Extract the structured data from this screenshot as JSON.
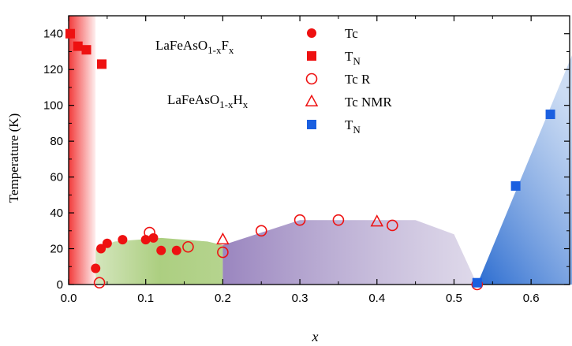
{
  "chart_data": {
    "type": "scatter",
    "xlabel": "x",
    "ylabel": "Temperature (K)",
    "xlim": [
      0,
      0.65
    ],
    "ylim": [
      0,
      150
    ],
    "x_ticks": [
      "0.0",
      "0.1",
      "0.2",
      "0.3",
      "0.4",
      "0.5",
      "0.6"
    ],
    "y_ticks": [
      "0",
      "20",
      "40",
      "60",
      "80",
      "100",
      "120",
      "140"
    ],
    "annotations": [
      {
        "id": "f",
        "base": "LaFeAsO",
        "sub": "1-x",
        "element": "F",
        "sub2": "x"
      },
      {
        "id": "h",
        "base": "LaFeAsO",
        "sub": "1-x",
        "element": "H",
        "sub2": "x"
      }
    ],
    "series": [
      {
        "name": "Tc",
        "marker": "filled-circle",
        "color": "#ee1111",
        "points": [
          [
            0.035,
            9
          ],
          [
            0.042,
            20
          ],
          [
            0.05,
            23
          ],
          [
            0.07,
            25
          ],
          [
            0.1,
            25
          ],
          [
            0.11,
            26
          ],
          [
            0.12,
            19
          ],
          [
            0.14,
            19
          ]
        ]
      },
      {
        "name": "T",
        "name_sub": "N",
        "marker": "filled-square",
        "color": "#ee1111",
        "points": [
          [
            0.002,
            140
          ],
          [
            0.012,
            133
          ],
          [
            0.023,
            131
          ],
          [
            0.043,
            123
          ]
        ]
      },
      {
        "name": "Tc R",
        "marker": "open-circle",
        "color": "#ee1111",
        "points": [
          [
            0.04,
            1
          ],
          [
            0.105,
            29
          ],
          [
            0.155,
            21
          ],
          [
            0.2,
            18
          ],
          [
            0.25,
            30
          ],
          [
            0.3,
            36
          ],
          [
            0.35,
            36
          ],
          [
            0.42,
            33
          ],
          [
            0.53,
            0
          ]
        ]
      },
      {
        "name": "Tc NMR",
        "marker": "open-triangle",
        "color": "#ee1111",
        "points": [
          [
            0.2,
            25
          ],
          [
            0.4,
            35
          ]
        ]
      },
      {
        "name": "T",
        "name_sub": "N",
        "marker": "filled-square",
        "color": "#1a5fe0",
        "points": [
          [
            0.53,
            1
          ],
          [
            0.58,
            55
          ],
          [
            0.625,
            95
          ]
        ]
      }
    ],
    "regions": [
      {
        "id": "red-afm",
        "color": "#f24848",
        "polygon": [
          [
            0,
            150
          ],
          [
            0.035,
            150
          ],
          [
            0.035,
            0
          ],
          [
            0,
            0
          ]
        ]
      },
      {
        "id": "green-sc",
        "color": "#a8cc7a",
        "polygon": [
          [
            0.035,
            0
          ],
          [
            0.035,
            20
          ],
          [
            0.06,
            24
          ],
          [
            0.12,
            26
          ],
          [
            0.18,
            24
          ],
          [
            0.2,
            22
          ],
          [
            0.2,
            0
          ]
        ]
      },
      {
        "id": "purple-sc",
        "color": "#9a82bb",
        "polygon": [
          [
            0.2,
            0
          ],
          [
            0.2,
            22
          ],
          [
            0.3,
            36
          ],
          [
            0.45,
            36
          ],
          [
            0.5,
            28
          ],
          [
            0.53,
            0
          ]
        ]
      },
      {
        "id": "blue-afm",
        "color": "#3d7fd4",
        "polygon": [
          [
            0.53,
            0
          ],
          [
            0.655,
            130
          ],
          [
            0.655,
            0
          ]
        ]
      }
    ]
  }
}
